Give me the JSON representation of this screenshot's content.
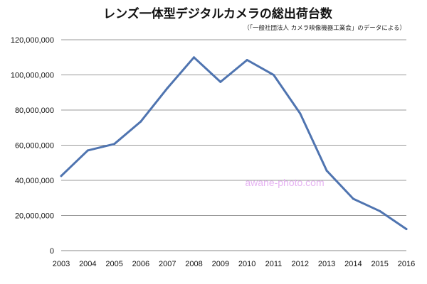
{
  "chart_data": {
    "type": "line",
    "title": "レンズ一体型デジタルカメラの総出荷台数",
    "subtitle": "（「一般社団法人 カメラ映像機器工業会」のデータによる）",
    "watermark": "awane-photo.com",
    "x": [
      "2003",
      "2004",
      "2005",
      "2006",
      "2007",
      "2008",
      "2009",
      "2010",
      "2011",
      "2012",
      "2013",
      "2014",
      "2015",
      "2016"
    ],
    "series": [
      {
        "color": "#4f74b0",
        "values": [
          42500000,
          57000000,
          60700000,
          73500000,
          92500000,
          110000000,
          96000000,
          108500000,
          100000000,
          78000000,
          45500000,
          29500000,
          22500000,
          12300000
        ]
      }
    ],
    "ylim": [
      0,
      120000000
    ],
    "yticks": [
      0,
      20000000,
      40000000,
      60000000,
      80000000,
      100000000,
      120000000
    ],
    "ytick_labels": [
      "0",
      "20,000,000",
      "40,000,000",
      "60,000,000",
      "80,000,000",
      "100,000,000",
      "120,000,000"
    ],
    "grid": true,
    "grid_color": "#999999",
    "legend": "none"
  }
}
